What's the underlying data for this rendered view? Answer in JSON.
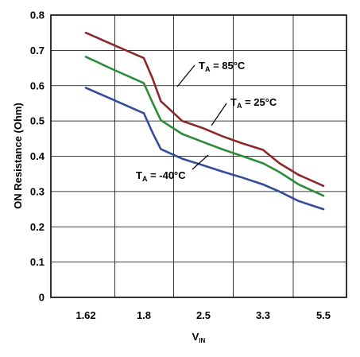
{
  "chart_data": {
    "type": "line",
    "xlabel_main": "V",
    "xlabel_sub": "IN",
    "ylabel": "ON Resistance (Ohm)",
    "x_ticks": [
      "1.62",
      "1.8",
      "2.5",
      "3.3",
      "5.5"
    ],
    "ylim": [
      0,
      0.8
    ],
    "y_ticks": [
      "0",
      "0.1",
      "0.2",
      "0.3",
      "0.4",
      "0.5",
      "0.6",
      "0.7",
      "0.8"
    ],
    "grid": true,
    "x": [
      1.62,
      1.7,
      1.8,
      1.9,
      2.0,
      2.25,
      2.5,
      2.75,
      3.0,
      3.3,
      3.9,
      4.6,
      5.5
    ],
    "series": [
      {
        "key": "t85",
        "color": "#8b2a2a",
        "values": [
          0.75,
          0.718,
          0.678,
          0.622,
          0.556,
          0.5,
          0.479,
          0.457,
          0.438,
          0.418,
          0.38,
          0.347,
          0.316
        ]
      },
      {
        "key": "t25",
        "color": "#2e8b3a",
        "values": [
          0.682,
          0.648,
          0.607,
          0.553,
          0.502,
          0.463,
          0.44,
          0.42,
          0.402,
          0.38,
          0.355,
          0.32,
          0.288
        ]
      },
      {
        "key": "tm40",
        "color": "#334d99",
        "values": [
          0.594,
          0.562,
          0.522,
          0.468,
          0.42,
          0.393,
          0.374,
          0.357,
          0.341,
          0.32,
          0.3,
          0.273,
          0.25
        ]
      }
    ],
    "annotations": [
      {
        "key": "t85",
        "prefix": "T",
        "sub": "A",
        "suffix": " = 85°C"
      },
      {
        "key": "t25",
        "prefix": "T",
        "sub": "A",
        "suffix": " = 25°C"
      },
      {
        "key": "tm40",
        "prefix": "T",
        "sub": "A",
        "suffix": " = -40°C"
      }
    ]
  }
}
